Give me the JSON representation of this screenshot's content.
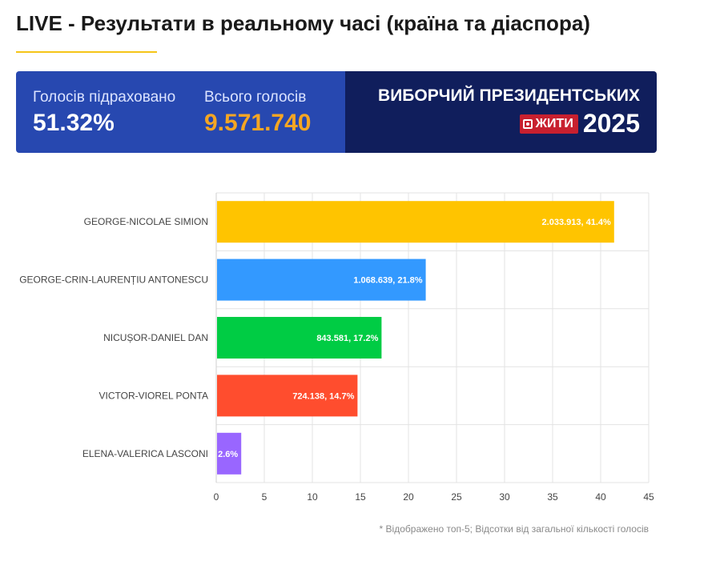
{
  "page": {
    "title": "LIVE - Результати в реальному часі (країна та діаспора)"
  },
  "banner": {
    "counted_label": "Голосів підраховано",
    "counted_value": "51.32%",
    "total_label": "Всього голосів",
    "total_value": "9.571.740",
    "brand_title": "ВИБОРЧИЙ ПРЕЗИДЕНТСЬКИХ",
    "brand_badge": "ЖИТИ",
    "brand_year": "2025",
    "colors": {
      "left": "#2748b0",
      "right": "#101e5c",
      "accent": "#f5a623",
      "badge": "#c8202f"
    }
  },
  "chart_data": {
    "type": "bar",
    "orientation": "horizontal",
    "categories": [
      "GEORGE-NICOLAE SIMION",
      "GEORGE-CRIN-LAURENȚIU ANTONESCU",
      "NICUȘOR-DANIEL DAN",
      "VICTOR-VIOREL PONTA",
      "ELENA-VALERICA LASCONI"
    ],
    "values": [
      41.4,
      21.8,
      17.2,
      14.7,
      2.6
    ],
    "data_labels": [
      "2.033.913, 41.4%",
      "1.068.639, 21.8%",
      "843.581, 17.2%",
      "724.138, 14.7%",
      "2.6%"
    ],
    "colors": [
      "#ffc400",
      "#3399ff",
      "#00cc44",
      "#ff4d2e",
      "#9966ff"
    ],
    "xlim": [
      0,
      45
    ],
    "xticks": [
      0,
      5,
      10,
      15,
      20,
      25,
      30,
      35,
      40,
      45
    ],
    "grid": true
  },
  "footnote": "* Відображено топ-5; Відсотки від загальної кількості голосів"
}
